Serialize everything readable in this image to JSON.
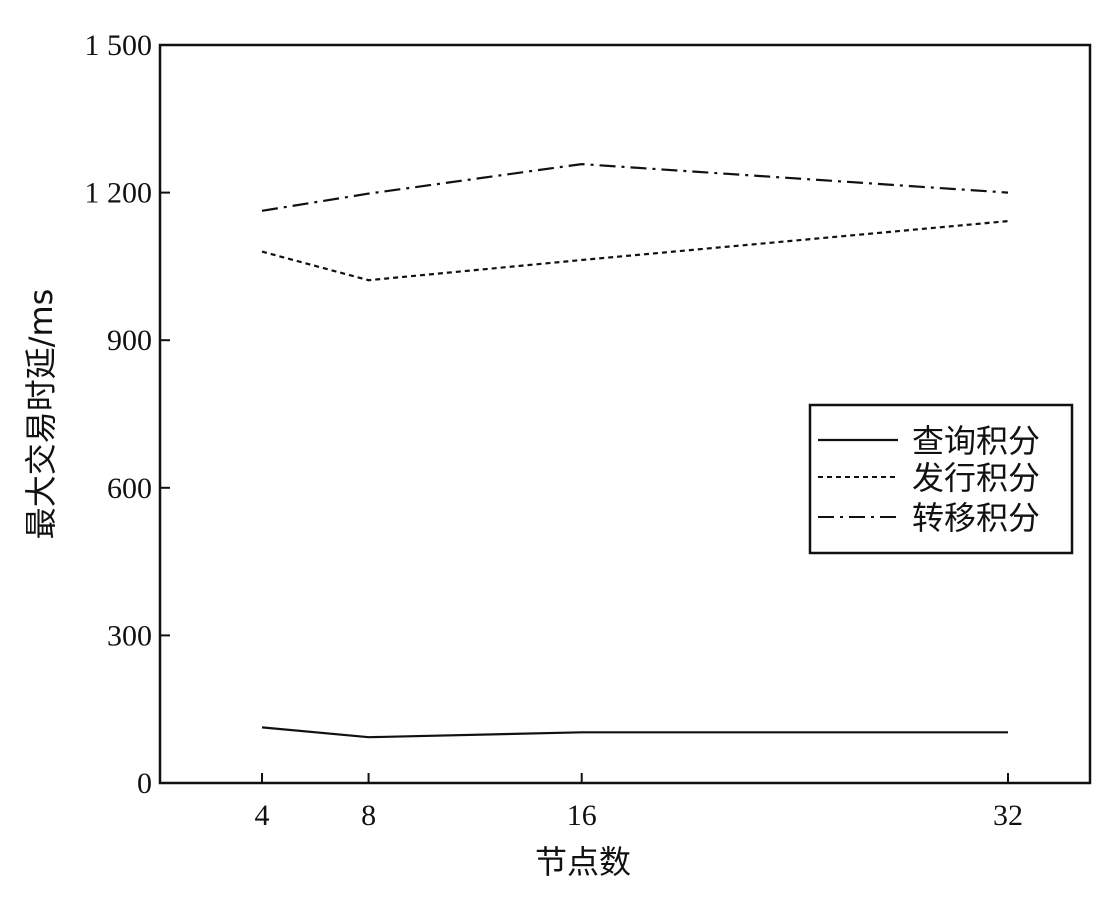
{
  "chart_data": {
    "type": "line",
    "title": "",
    "xlabel": "节点数",
    "ylabel": "最大交易时延/ms",
    "x": [
      4,
      8,
      16,
      32
    ],
    "x_ticks": [
      "4",
      "8",
      "16",
      "32"
    ],
    "y_ticks": [
      "0",
      "300",
      "600",
      "900",
      "1 200",
      "1 500"
    ],
    "ylim": [
      0,
      1500
    ],
    "grid": false,
    "legend_position": "right",
    "series": [
      {
        "name": "查询积分",
        "values": [
          113,
          93,
          103,
          103
        ],
        "line_style": "solid",
        "color": "#111111"
      },
      {
        "name": "发行积分",
        "values": [
          1080,
          1022,
          1063,
          1142
        ],
        "line_style": "dotted",
        "color": "#111111"
      },
      {
        "name": "转移积分",
        "values": [
          1163,
          1198,
          1258,
          1200
        ],
        "line_style": "dashdot",
        "color": "#111111"
      }
    ]
  }
}
